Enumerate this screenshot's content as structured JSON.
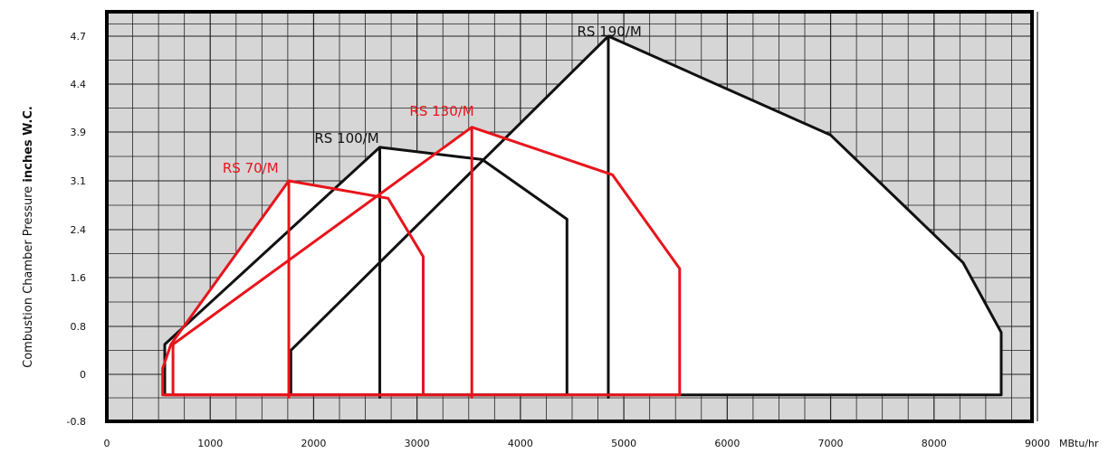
{
  "chart_data": {
    "type": "area",
    "title": "",
    "xlabel": "MBtu/hr",
    "ylabel_prefix": "Combustion Chamber Pressure ",
    "ylabel_emphasis": "inches W.C.",
    "x_ticks": [
      0,
      1000,
      2000,
      3000,
      4000,
      5000,
      6000,
      7000,
      8000,
      9000
    ],
    "y_ticks": [
      "-0.8",
      "0",
      "0.8",
      "1.6",
      "2.4",
      "3.1",
      "3.9",
      "4.4",
      "4.7"
    ],
    "xlim": [
      0,
      9000
    ],
    "grid": true,
    "plot_background": "#d6d6d6",
    "region_fill": "#ffffff",
    "series": [
      {
        "name": "RS 70/M",
        "color": "#e8141b",
        "outline": [
          [
            540,
            0.1
          ],
          [
            620,
            0.5
          ],
          [
            1760,
            3.1
          ],
          [
            2720,
            2.85
          ],
          [
            3060,
            1.95
          ],
          [
            3060,
            -0.35
          ],
          [
            540,
            -0.35
          ]
        ],
        "dividers": [
          [
            [
              1760,
              3.1
            ],
            [
              1760,
              -0.35
            ]
          ]
        ]
      },
      {
        "name": "RS 100/M",
        "color": "#111111",
        "outline": [
          [
            560,
            0.5
          ],
          [
            2640,
            3.65
          ],
          [
            3630,
            3.45
          ],
          [
            4450,
            2.55
          ],
          [
            4450,
            -0.35
          ],
          [
            560,
            -0.35
          ]
        ],
        "dividers": [
          [
            [
              2640,
              3.65
            ],
            [
              2640,
              -0.35
            ]
          ]
        ]
      },
      {
        "name": "RS 130/M",
        "color": "#e8141b",
        "outline": [
          [
            640,
            0.5
          ],
          [
            3530,
            3.95
          ],
          [
            4890,
            3.2
          ],
          [
            5540,
            1.75
          ],
          [
            5540,
            -0.35
          ],
          [
            640,
            -0.35
          ]
        ],
        "dividers": [
          [
            [
              3530,
              3.95
            ],
            [
              3530,
              -0.35
            ]
          ]
        ]
      },
      {
        "name": "RS 190/M",
        "color": "#111111",
        "outline": [
          [
            1780,
            0.4
          ],
          [
            4850,
            4.7
          ],
          [
            7000,
            3.85
          ],
          [
            8280,
            1.85
          ],
          [
            8650,
            0.7
          ],
          [
            8650,
            -0.35
          ],
          [
            1780,
            -0.35
          ]
        ],
        "dividers": [
          [
            [
              4850,
              4.7
            ],
            [
              4850,
              -0.35
            ]
          ]
        ]
      }
    ]
  }
}
